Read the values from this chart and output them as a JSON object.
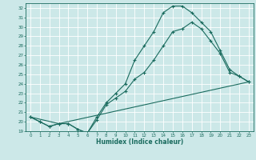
{
  "xlabel": "Humidex (Indice chaleur)",
  "bg_color": "#cce8e8",
  "grid_color": "#ffffff",
  "line_color": "#1a6b5e",
  "xlim": [
    -0.5,
    23.5
  ],
  "ylim": [
    19,
    32.5
  ],
  "yticks": [
    19,
    20,
    21,
    22,
    23,
    24,
    25,
    26,
    27,
    28,
    29,
    30,
    31,
    32
  ],
  "xticks": [
    0,
    1,
    2,
    3,
    4,
    5,
    6,
    7,
    8,
    9,
    10,
    11,
    12,
    13,
    14,
    15,
    16,
    17,
    18,
    19,
    20,
    21,
    22,
    23
  ],
  "line1_x": [
    0,
    1,
    2,
    3,
    4,
    5,
    6,
    7,
    8,
    9,
    10,
    11,
    12,
    13,
    14,
    15,
    16,
    17,
    18,
    19,
    20,
    21,
    22,
    23
  ],
  "line1_y": [
    20.5,
    20.0,
    19.5,
    19.8,
    19.8,
    19.2,
    18.8,
    20.2,
    21.8,
    22.5,
    23.2,
    24.5,
    25.2,
    26.5,
    28.0,
    29.5,
    29.8,
    30.5,
    29.8,
    28.5,
    27.2,
    25.2,
    24.8,
    24.2
  ],
  "line2_x": [
    0,
    1,
    2,
    3,
    4,
    5,
    6,
    7,
    8,
    9,
    10,
    11,
    12,
    13,
    14,
    15,
    16,
    17,
    18,
    19,
    20,
    21,
    22,
    23
  ],
  "line2_y": [
    20.5,
    20.0,
    19.5,
    19.8,
    19.8,
    19.2,
    18.8,
    20.5,
    22.0,
    23.0,
    24.0,
    26.5,
    28.0,
    29.5,
    31.5,
    32.2,
    32.2,
    31.5,
    30.5,
    29.5,
    27.5,
    25.5,
    24.8,
    24.2
  ],
  "line3_x": [
    0,
    3,
    23
  ],
  "line3_y": [
    20.5,
    19.8,
    24.2
  ]
}
